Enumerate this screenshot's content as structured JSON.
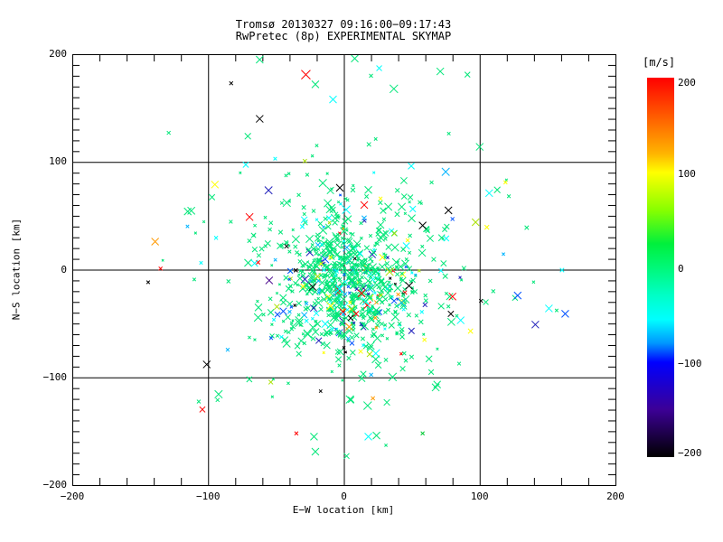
{
  "title": {
    "line1": "Tromsø 20130327 09:16:00−09:17:43",
    "line2": "RwPretec (8p) EXPERIMENTAL SKYMAP"
  },
  "axes": {
    "x": {
      "title": "E−W location [km]",
      "min": -200,
      "max": 200,
      "major_ticks": [
        -200,
        -100,
        0,
        100,
        200
      ],
      "tick_labels": [
        "−200",
        "−100",
        "0",
        "100",
        "200"
      ],
      "minor_step": 20,
      "gridlines": [
        -100,
        0,
        100
      ]
    },
    "y": {
      "title": "N−S location [km]",
      "min": -200,
      "max": 200,
      "major_ticks": [
        200,
        100,
        0,
        -100,
        -200
      ],
      "tick_labels": [
        "200",
        "100",
        "0",
        "−100",
        "−200"
      ],
      "minor_step": 10,
      "gridlines": [
        -100,
        0,
        100
      ]
    }
  },
  "colorbar": {
    "label": "[m/s]",
    "min": -200,
    "max": 200,
    "tick_values": [
      200,
      100,
      0,
      -100,
      -200
    ],
    "tick_labels": [
      "200",
      "100",
      "0",
      "−100",
      "−200"
    ],
    "stops": [
      {
        "value": 200,
        "color": "#FF0000"
      },
      {
        "value": 160,
        "color": "#FF5A00"
      },
      {
        "value": 120,
        "color": "#FFB400"
      },
      {
        "value": 100,
        "color": "#FFFF00"
      },
      {
        "value": 60,
        "color": "#86FF00"
      },
      {
        "value": 25,
        "color": "#00F03C"
      },
      {
        "value": 0,
        "color": "#00F878"
      },
      {
        "value": -30,
        "color": "#00FFC8"
      },
      {
        "value": -55,
        "color": "#00FFFF"
      },
      {
        "value": -80,
        "color": "#0096FF"
      },
      {
        "value": -100,
        "color": "#0000FF"
      },
      {
        "value": -150,
        "color": "#3C0096"
      },
      {
        "value": -200,
        "color": "#000000"
      }
    ]
  },
  "chart_data": {
    "type": "scatter",
    "title": "Tromsø 20130327 09:16:00−09:17:43 / RwPretec (8p) EXPERIMENTAL SKYMAP",
    "xlabel": "E−W location [km]",
    "ylabel": "N−S location [km]",
    "xlim": [
      -200,
      200
    ],
    "ylim": [
      -200,
      200
    ],
    "grid": true,
    "marker": "x",
    "value_dimension": "Doppler velocity [m/s] mapped to colorbar",
    "cluster": {
      "description": "dense cloud of echo locations, ~0 m/s (spring green), centered near origin",
      "seed": 1303270916,
      "n_core": 560,
      "core_center": [
        2,
        -12
      ],
      "core_sigma": [
        24,
        28
      ],
      "n_halo": 320,
      "halo_center": [
        5,
        -5
      ],
      "halo_sigma": [
        52,
        58
      ],
      "color_weights": [
        [
          "#00E678",
          0.78
        ],
        [
          "#00FFFF",
          0.075
        ],
        [
          "#00B4FF",
          0.03
        ],
        [
          "#0050FF",
          0.018
        ],
        [
          "#AAE100",
          0.022
        ],
        [
          "#FFFF00",
          0.02
        ],
        [
          "#FF0000",
          0.013
        ],
        [
          "#FF9900",
          0.009
        ],
        [
          "#000000",
          0.018
        ],
        [
          "#2222BB",
          0.015
        ]
      ]
    },
    "outliers": [
      [
        -28,
        181,
        "#FF0000",
        5
      ],
      [
        -62,
        195,
        "#00E678",
        4
      ],
      [
        -83,
        173,
        "#000000",
        2
      ],
      [
        -21,
        172,
        "#00E678",
        4
      ],
      [
        -8,
        158,
        "#00FFFF",
        4
      ],
      [
        -62,
        140,
        "#000000",
        4
      ],
      [
        -129,
        127,
        "#00E678",
        2
      ],
      [
        -95,
        79,
        "#FFFF00",
        4
      ],
      [
        -115,
        54,
        "#00E678",
        4
      ],
      [
        -139,
        26,
        "#FF9900",
        4
      ],
      [
        -135,
        1,
        "#FF0000",
        2
      ],
      [
        -101,
        -88,
        "#000000",
        4
      ],
      [
        -55,
        -10,
        "#440088",
        4
      ],
      [
        -23,
        -16,
        "#000000",
        4
      ],
      [
        -35,
        -152,
        "#FF0000",
        2
      ],
      [
        -22,
        -155,
        "#00E678",
        4
      ],
      [
        -21,
        -169,
        "#00E678",
        4
      ],
      [
        18,
        -155,
        "#00FFFF",
        4
      ],
      [
        24,
        -154,
        "#00E678",
        4
      ],
      [
        58,
        -152,
        "#00C832",
        2
      ],
      [
        80,
        -25,
        "#FF0000",
        4
      ],
      [
        101,
        -29,
        "#000000",
        2
      ],
      [
        128,
        -24,
        "#0050FF",
        4
      ],
      [
        151,
        -36,
        "#00FFFF",
        4
      ],
      [
        163,
        -41,
        "#0050FF",
        4
      ],
      [
        141,
        -51,
        "#2222BB",
        4
      ],
      [
        86,
        -47,
        "#00FFFF",
        4
      ],
      [
        110,
        -20,
        "#00E678",
        2
      ],
      [
        71,
        184,
        "#00E678",
        4
      ],
      [
        91,
        181,
        "#00E678",
        3
      ],
      [
        100,
        114,
        "#00E678",
        4
      ],
      [
        15,
        60,
        "#FF0000",
        4
      ],
      [
        77,
        55,
        "#000000",
        4
      ],
      [
        58,
        41,
        "#000000",
        4
      ],
      [
        107,
        71,
        "#00FFFF",
        4
      ],
      [
        119,
        81,
        "#FFFF00",
        2
      ],
      [
        97,
        44,
        "#AAE100",
        4
      ],
      [
        80,
        47,
        "#0050FF",
        2
      ],
      [
        48,
        -15,
        "#000000",
        4
      ],
      [
        13,
        -22,
        "#FF0000",
        4
      ],
      [
        9,
        -41,
        "#FF0000",
        3
      ],
      [
        5,
        -45,
        "#000000",
        3
      ],
      [
        37,
        -29,
        "#0050FF",
        3
      ],
      [
        40,
        -23,
        "#FF9900",
        2
      ],
      [
        -3,
        76,
        "#000000",
        4
      ],
      [
        20,
        180,
        "#00E678",
        2
      ],
      [
        8,
        196,
        "#00E678",
        4
      ],
      [
        2,
        -173,
        "#00E678",
        3
      ],
      [
        -93,
        -121,
        "#00E678",
        2
      ],
      [
        26,
        187,
        "#00FFFF",
        3
      ],
      [
        18,
        74,
        "#00E678",
        4
      ],
      [
        27,
        66,
        "#FFFF00",
        2
      ]
    ]
  }
}
